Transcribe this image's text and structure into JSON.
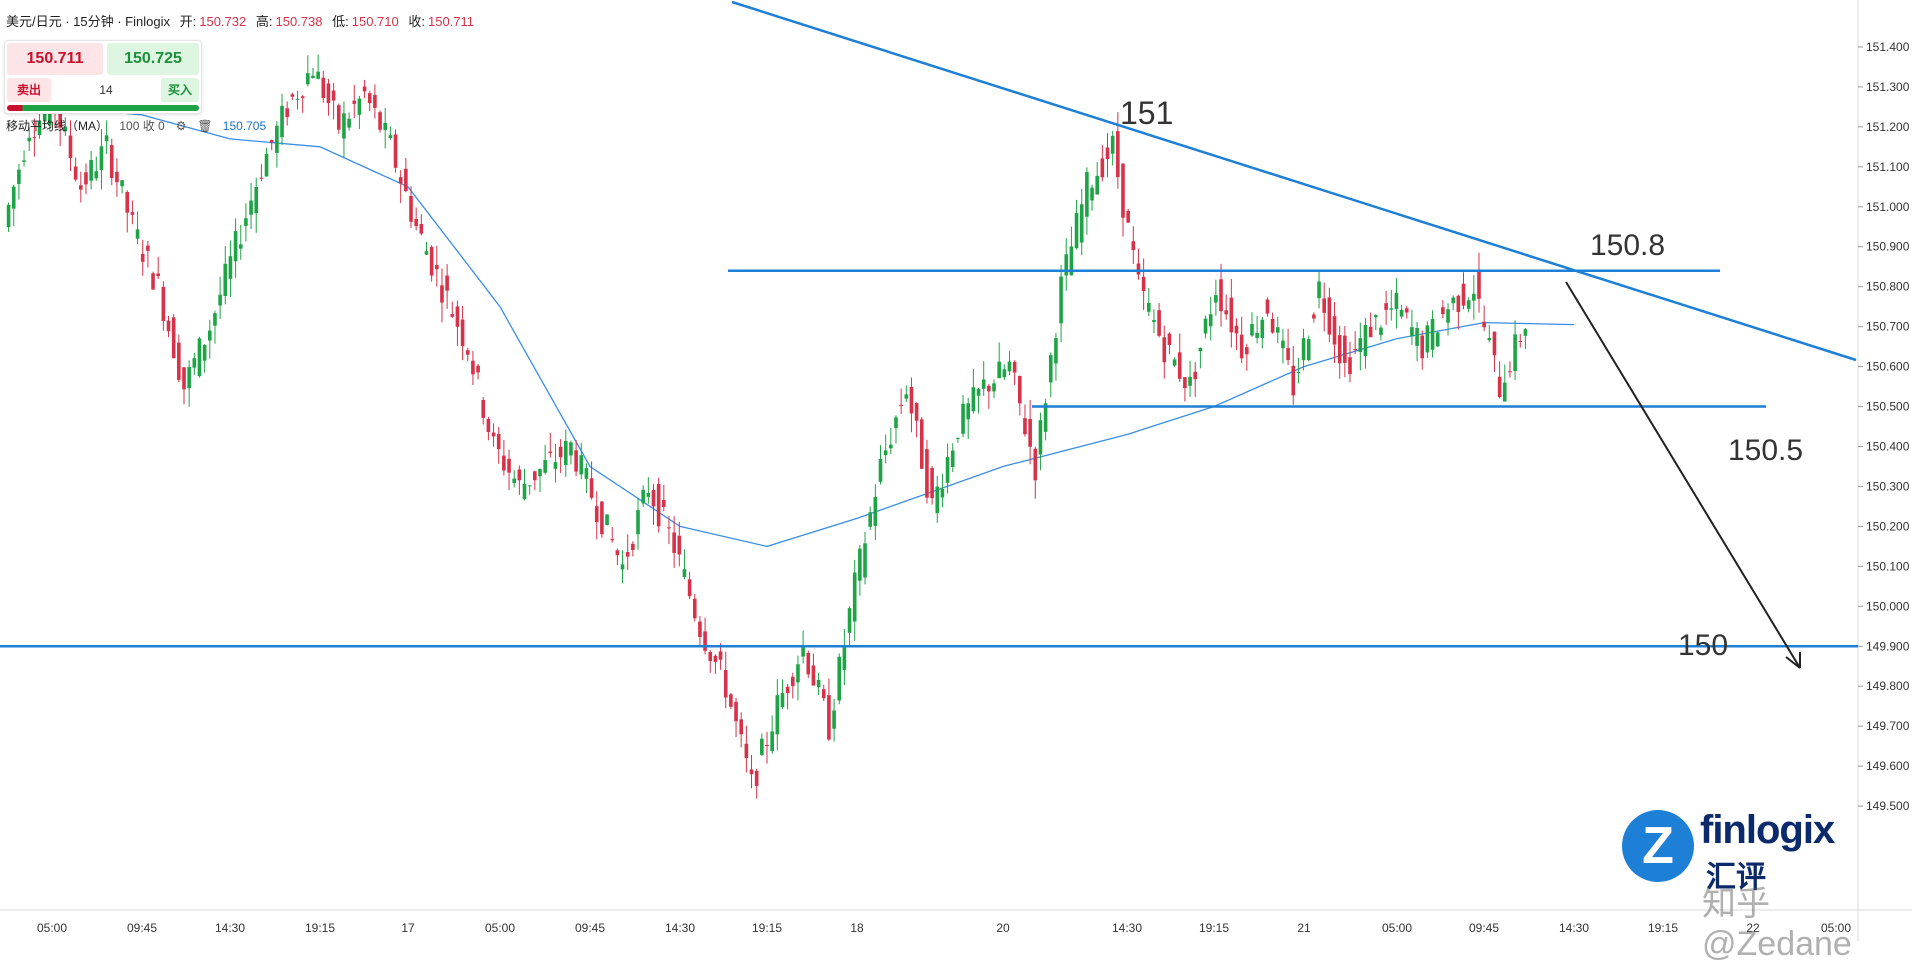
{
  "header": {
    "symbol": "美元/日元 · 15分钟 · Finlogix",
    "open_label": "开:",
    "open": "150.732",
    "high_label": "高:",
    "high": "150.738",
    "low_label": "低:",
    "low": "150.710",
    "close_label": "收:",
    "close": "150.711"
  },
  "trade_panel": {
    "sell_price": "150.711",
    "buy_price": "150.725",
    "sell_label": "卖出",
    "buy_label": "买入",
    "quantity": "14"
  },
  "indicator": {
    "name": "移动平均线（MA）",
    "params": "100 收 0",
    "settings_icon": "gear-icon",
    "delete_icon": "trash-icon",
    "value": "150.705"
  },
  "chart_data": {
    "type": "candlestick",
    "instrument": "美元/日元",
    "timeframe": "15分钟",
    "ylim": [
      149.3,
      151.5
    ],
    "y_ticks": [
      "151.400",
      "151.300",
      "151.200",
      "151.100",
      "151.000",
      "150.900",
      "150.800",
      "150.700",
      "150.600",
      "150.500",
      "150.400",
      "150.300",
      "150.200",
      "150.100",
      "150.000",
      "149.900",
      "149.800",
      "149.700",
      "149.600",
      "149.500"
    ],
    "x_ticks": [
      "05:00",
      "09:45",
      "14:30",
      "19:15",
      "17",
      "05:00",
      "09:45",
      "14:30",
      "19:15",
      "18",
      "20",
      "14:30",
      "19:15",
      "21",
      "05:00",
      "09:45",
      "14:30",
      "19:15",
      "22",
      "05:00"
    ],
    "up_color": "#1ea446",
    "down_color": "#d6334a",
    "price_path": [
      150.95,
      151.2,
      151.25,
      151.05,
      151.15,
      150.95,
      150.8,
      150.55,
      150.7,
      150.9,
      151.1,
      151.25,
      151.35,
      151.2,
      151.28,
      151.15,
      150.95,
      150.8,
      150.65,
      150.4,
      150.3,
      150.35,
      150.4,
      150.25,
      150.1,
      150.3,
      150.15,
      149.95,
      149.8,
      149.55,
      149.75,
      149.9,
      149.7,
      150.05,
      150.35,
      150.55,
      150.25,
      150.45,
      150.55,
      150.6,
      150.35,
      150.8,
      151.05,
      151.15,
      150.8,
      150.65,
      150.55,
      150.8,
      150.65,
      150.75,
      150.55,
      150.8,
      150.6,
      150.7,
      150.75,
      150.65,
      150.75,
      150.8,
      150.55,
      150.71
    ],
    "ma": {
      "name": "移动平均线（MA）",
      "period": 100,
      "color": "#3a8ee6",
      "x": [
        "05:00",
        "09:45",
        "14:30",
        "19:15",
        "17",
        "05:00",
        "09:45",
        "14:30",
        "19:15",
        "18",
        "20",
        "14:30",
        "19:15",
        "21",
        "05:00",
        "09:45",
        "14:30"
      ],
      "values": [
        151.25,
        151.23,
        151.17,
        151.15,
        151.05,
        150.75,
        150.35,
        150.2,
        150.15,
        150.22,
        150.35,
        150.43,
        150.5,
        150.6,
        150.67,
        150.71,
        150.705
      ]
    },
    "annotations": [
      {
        "type": "trendline",
        "from": {
          "x": "14:30",
          "y": 151.5
        },
        "to": {
          "x": "22",
          "y": 150.65
        },
        "color": "#1e7fd6"
      },
      {
        "type": "hline",
        "y": 150.84,
        "color": "#1e7fd6",
        "label": "150.8"
      },
      {
        "type": "hline",
        "y": 150.5,
        "color": "#1e7fd6",
        "label": "150.5"
      },
      {
        "type": "hline",
        "y": 149.9,
        "color": "#1e7fd6",
        "label": "150"
      },
      {
        "type": "text",
        "x": "20",
        "y": 151.25,
        "text": "151"
      },
      {
        "type": "arrow",
        "from": {
          "x": "14:30",
          "y": 150.85
        },
        "to": {
          "x": "19:15",
          "y": 149.9
        },
        "color": "#222222"
      }
    ],
    "grid": false
  },
  "branding": {
    "logo_letter": "Z",
    "name": "finlogix",
    "sub": "汇评",
    "watermark": "知乎 @Zedane"
  }
}
